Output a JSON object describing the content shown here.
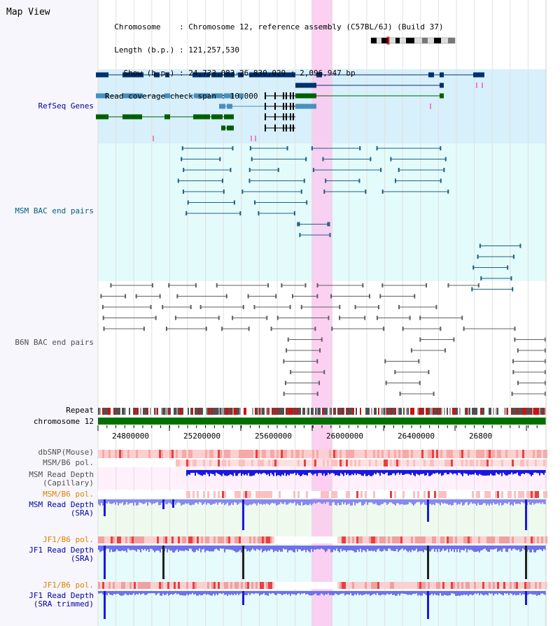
{
  "header": {
    "title": "Map View",
    "lines": [
      "  Chromosome    : Chromosome 12, reference assembly (C57BL/6J) (Build 37)",
      "  Length (b.p.) : 121,257,530",
      "    Show (b.p.) : 24,733,083-26,830,029 : 2,096,947 bp",
      "Read coverage check span : 10,000"
    ]
  },
  "tracks": {
    "refseq": "RefSeq Genes",
    "msm_bac": "MSM BAC end pairs",
    "b6n_bac": "B6N BAC end pairs",
    "repeat": "Repeat",
    "chromosome": "chromosome 12",
    "dbsnp": "dbSNP(Mouse)",
    "msm_b6_pol": "MSM/B6 pol.",
    "msm_depth_cap": "MSM Read Depth\n(Capillary)",
    "msm_b6_pol2": "MSM/B6 pol.",
    "msm_depth_sra": "MSM Read Depth\n(SRA)",
    "jf1_b6_pol": "JF1/B6 pol.",
    "jf1_depth_sra": "JF1 Read Depth\n(SRA)",
    "jf1_b6_pol2": "JF1/B6 pol.",
    "jf1_depth_trim": "JF1 Read Depth\n(SRA trimmed)"
  },
  "axis": {
    "ticks": [
      "24800000",
      "25200000",
      "25600000",
      "26000000",
      "26400000",
      "26800"
    ]
  },
  "colors": {
    "refseq_bg": "#d7f0fb",
    "msm_bg": "#e4fbfb",
    "highlight": "#fbc8ee",
    "chromosome": "#007000",
    "depth_blue": "#1010e0",
    "depth_light": "#8080f0"
  }
}
